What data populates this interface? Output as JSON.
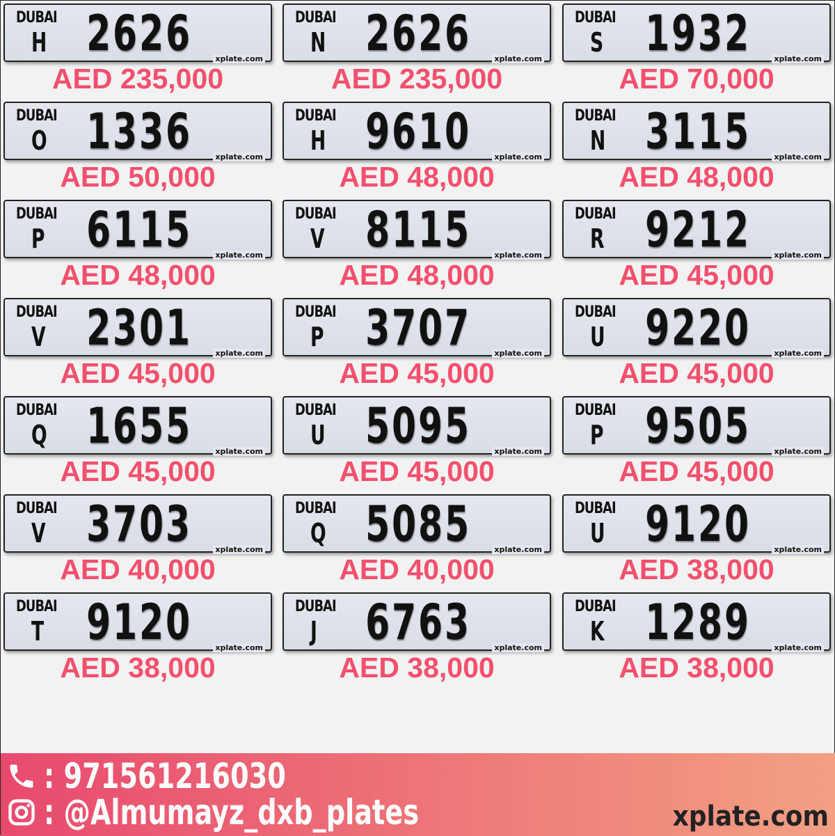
{
  "plate_header": "DUBAI",
  "watermark": "xplate.com",
  "plates": [
    {
      "code": "H",
      "number": "2626",
      "price": "AED 235,000"
    },
    {
      "code": "N",
      "number": "2626",
      "price": "AED 235,000"
    },
    {
      "code": "S",
      "number": "1932",
      "price": "AED 70,000"
    },
    {
      "code": "O",
      "number": "1336",
      "price": "AED 50,000"
    },
    {
      "code": "H",
      "number": "9610",
      "price": "AED 48,000"
    },
    {
      "code": "N",
      "number": "3115",
      "price": "AED 48,000"
    },
    {
      "code": "P",
      "number": "6115",
      "price": "AED 48,000"
    },
    {
      "code": "V",
      "number": "8115",
      "price": "AED 48,000"
    },
    {
      "code": "R",
      "number": "9212",
      "price": "AED 45,000"
    },
    {
      "code": "V",
      "number": "2301",
      "price": "AED 45,000"
    },
    {
      "code": "P",
      "number": "3707",
      "price": "AED 45,000"
    },
    {
      "code": "U",
      "number": "9220",
      "price": "AED 45,000"
    },
    {
      "code": "Q",
      "number": "1655",
      "price": "AED 45,000"
    },
    {
      "code": "U",
      "number": "5095",
      "price": "AED 45,000"
    },
    {
      "code": "P",
      "number": "9505",
      "price": "AED 45,000"
    },
    {
      "code": "V",
      "number": "3703",
      "price": "AED 40,000"
    },
    {
      "code": "Q",
      "number": "5085",
      "price": "AED 40,000"
    },
    {
      "code": "U",
      "number": "9120",
      "price": "AED 38,000"
    },
    {
      "code": "T",
      "number": "9120",
      "price": "AED 38,000"
    },
    {
      "code": "J",
      "number": "6763",
      "price": "AED 38,000"
    },
    {
      "code": "K",
      "number": "1289",
      "price": "AED 38,000"
    }
  ],
  "footer": {
    "phone": ": 971561216030",
    "instagram": ": @Almumayz_dxb_plates",
    "site": "xplate.com",
    "phone_icon": "phone-icon",
    "instagram_icon": "instagram-icon"
  },
  "colors": {
    "price": "#f2506e",
    "footer_start": "#e84a6e",
    "footer_end": "#f3a083"
  }
}
